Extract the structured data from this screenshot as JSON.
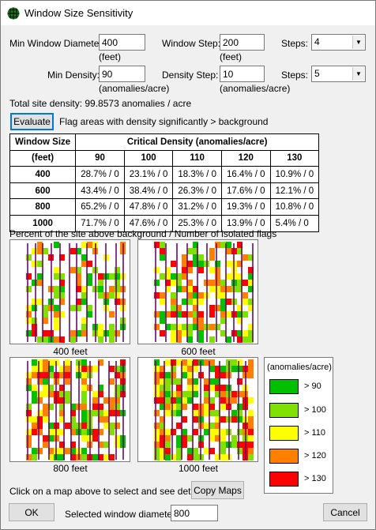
{
  "window": {
    "title": "Window Size Sensitivity"
  },
  "params": {
    "min_window_label": "Min Window Diameter:",
    "min_window_value": "400",
    "min_window_unit": "(feet)",
    "window_step_label": "Window Step:",
    "window_step_value": "200",
    "window_step_unit": "(feet)",
    "steps_label": "Steps:",
    "steps_window_value": "4",
    "min_density_label": "Min Density:",
    "min_density_value": "90",
    "min_density_unit": "(anomalies/acre)",
    "density_step_label": "Density Step:",
    "density_step_value": "10",
    "density_step_unit": "(anomalies/acre)",
    "steps_density_value": "5"
  },
  "total_density": "Total site density: 99.8573 anomalies / acre",
  "evaluate": {
    "button_label": "Evaluate",
    "description": "Flag areas with density significantly > background"
  },
  "table": {
    "header_window": "Window Size",
    "header_density": "Critical Density (anomalies/acre)",
    "unit_row": "(feet)",
    "densities": [
      "90",
      "100",
      "110",
      "120",
      "130"
    ],
    "rows": [
      {
        "window": "400",
        "cells": [
          "28.7% / 0",
          "23.1% / 0",
          "18.3% / 0",
          "16.4% / 0",
          "10.9% / 0"
        ]
      },
      {
        "window": "600",
        "cells": [
          "43.4% / 0",
          "38.4% / 0",
          "26.3% / 0",
          "17.6% / 0",
          "12.1% / 0"
        ]
      },
      {
        "window": "800",
        "cells": [
          "65.2% / 0",
          "47.8% / 0",
          "31.2% / 0",
          "19.3% / 0",
          "10.8% / 0"
        ]
      },
      {
        "window": "1000",
        "cells": [
          "71.7% / 0",
          "47.6% / 0",
          "25.3% / 0",
          "13.9% / 0",
          "5.4% / 0"
        ]
      }
    ],
    "caption": "Percent of the site above background / Number of isolated flags"
  },
  "maps": [
    {
      "caption": "400 feet"
    },
    {
      "caption": "600 feet"
    },
    {
      "caption": "800 feet"
    },
    {
      "caption": "1000 feet"
    }
  ],
  "legend": {
    "title": "(anomalies/acre)",
    "items": [
      {
        "label": "> 90",
        "color": "#00c000"
      },
      {
        "label": "> 100",
        "color": "#80e000"
      },
      {
        "label": "> 110",
        "color": "#ffff00"
      },
      {
        "label": "> 120",
        "color": "#ff8000"
      },
      {
        "label": "> 130",
        "color": "#ff0000"
      }
    ]
  },
  "footer": {
    "hint": "Click on a map above to select and see details.",
    "copy_maps_label": "Copy Maps",
    "ok_label": "OK",
    "selected_label": "Selected window diameter:",
    "selected_value": "800",
    "cancel_label": "Cancel"
  }
}
